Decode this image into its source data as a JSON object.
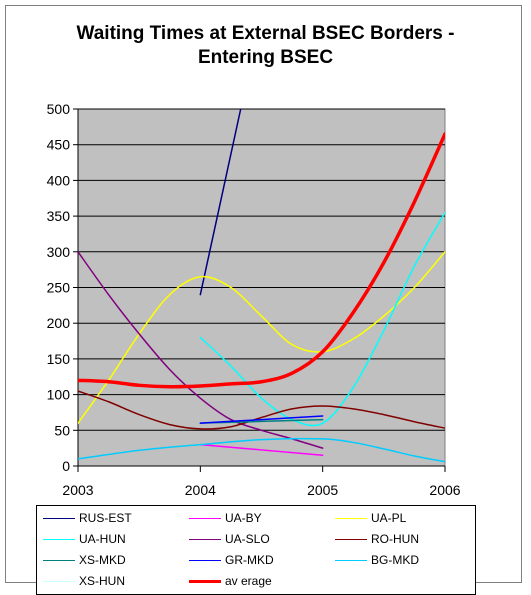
{
  "chart_data": {
    "type": "line",
    "title": [
      "Waiting Times at External BSEC Borders -",
      "Entering BSEC"
    ],
    "xlabel": "",
    "ylabel": "",
    "x_ticks": [
      "2003",
      "2004",
      "2005",
      "2006"
    ],
    "y_ticks": [
      0,
      50,
      100,
      150,
      200,
      250,
      300,
      350,
      400,
      450,
      500
    ],
    "xlim": [
      2003,
      2006
    ],
    "ylim": [
      0,
      500
    ],
    "plot_background": "#c0c0c0",
    "grid": "horizontal",
    "legend_position": "bottom",
    "series": [
      {
        "name": "RUS-EST",
        "color": "#000080",
        "width": 1.5,
        "points": [
          [
            2004,
            240
          ],
          [
            2004.33,
            500
          ]
        ]
      },
      {
        "name": "UA-BY",
        "color": "#ff00ff",
        "width": 1.5,
        "points": [
          [
            2004,
            30
          ],
          [
            2005,
            15
          ]
        ]
      },
      {
        "name": "UA-PL",
        "color": "#ffff00",
        "width": 1.5,
        "points": [
          [
            2003,
            60
          ],
          [
            2003.25,
            120
          ],
          [
            2003.5,
            185
          ],
          [
            2003.75,
            240
          ],
          [
            2004,
            265
          ],
          [
            2004.25,
            250
          ],
          [
            2004.5,
            210
          ],
          [
            2004.75,
            170
          ],
          [
            2005,
            160
          ],
          [
            2005.25,
            178
          ],
          [
            2005.5,
            210
          ],
          [
            2005.75,
            250
          ],
          [
            2006,
            300
          ]
        ]
      },
      {
        "name": "UA-HUN",
        "color": "#00ffff",
        "width": 1.5,
        "points": [
          [
            2004,
            180
          ],
          [
            2004.25,
            140
          ],
          [
            2004.5,
            95
          ],
          [
            2004.75,
            65
          ],
          [
            2005,
            60
          ],
          [
            2005.25,
            110
          ],
          [
            2005.5,
            190
          ],
          [
            2005.75,
            280
          ],
          [
            2006,
            355
          ]
        ]
      },
      {
        "name": "UA-SLO",
        "color": "#800080",
        "width": 1.5,
        "points": [
          [
            2003,
            300
          ],
          [
            2003.25,
            240
          ],
          [
            2003.5,
            185
          ],
          [
            2003.75,
            135
          ],
          [
            2004,
            95
          ],
          [
            2004.25,
            65
          ],
          [
            2004.5,
            50
          ],
          [
            2004.75,
            38
          ],
          [
            2005,
            25
          ]
        ]
      },
      {
        "name": "RO-HUN",
        "color": "#800000",
        "width": 1.5,
        "points": [
          [
            2003,
            105
          ],
          [
            2003.25,
            90
          ],
          [
            2003.5,
            72
          ],
          [
            2003.75,
            58
          ],
          [
            2004,
            52
          ],
          [
            2004.25,
            55
          ],
          [
            2004.5,
            68
          ],
          [
            2004.75,
            80
          ],
          [
            2005,
            84
          ],
          [
            2005.25,
            80
          ],
          [
            2005.5,
            72
          ],
          [
            2005.75,
            62
          ],
          [
            2006,
            53
          ]
        ]
      },
      {
        "name": "XS-MKD",
        "color": "#008080",
        "width": 1.5,
        "points": [
          [
            2004,
            60
          ],
          [
            2005,
            65
          ]
        ]
      },
      {
        "name": "GR-MKD",
        "color": "#0000ff",
        "width": 1.5,
        "points": [
          [
            2004,
            60
          ],
          [
            2004.5,
            65
          ],
          [
            2005,
            70
          ]
        ]
      },
      {
        "name": "BG-MKD",
        "color": "#00ccff",
        "width": 1.5,
        "points": [
          [
            2003,
            10
          ],
          [
            2003.5,
            22
          ],
          [
            2004,
            30
          ],
          [
            2004.5,
            37
          ],
          [
            2005,
            38
          ],
          [
            2005.25,
            33
          ],
          [
            2005.5,
            24
          ],
          [
            2005.75,
            14
          ],
          [
            2006,
            6
          ]
        ]
      },
      {
        "name": "XS-HUN",
        "color": "#ccffff",
        "width": 1.5,
        "points": []
      },
      {
        "name": "av erage",
        "color": "#ff0000",
        "width": 3.5,
        "points": [
          [
            2003,
            120
          ],
          [
            2003.25,
            118
          ],
          [
            2003.5,
            113
          ],
          [
            2003.75,
            111
          ],
          [
            2004,
            112
          ],
          [
            2004.25,
            115
          ],
          [
            2004.5,
            118
          ],
          [
            2004.75,
            130
          ],
          [
            2005,
            160
          ],
          [
            2005.25,
            215
          ],
          [
            2005.5,
            285
          ],
          [
            2005.75,
            370
          ],
          [
            2006,
            465
          ]
        ]
      }
    ]
  }
}
